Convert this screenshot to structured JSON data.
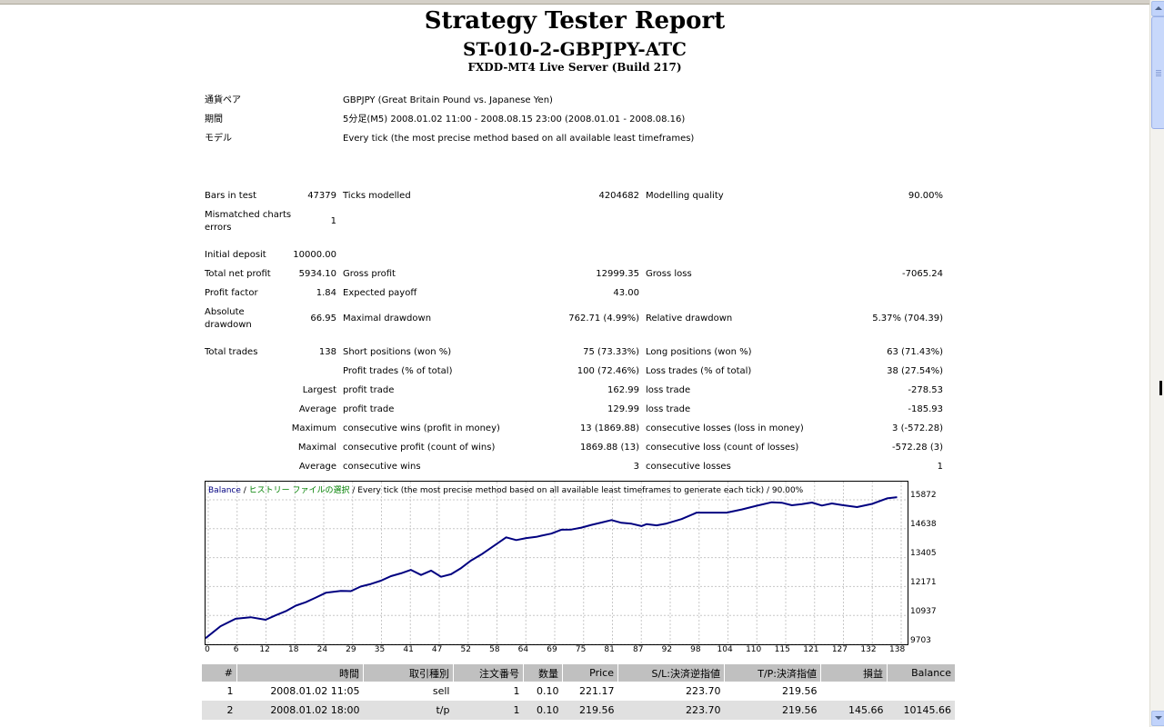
{
  "report": {
    "title": "Strategy Tester Report",
    "subtitle": "ST-010-2-GBPJPY-ATC",
    "server": "FXDD-MT4 Live Server (Build 217)"
  },
  "info": {
    "pair_label": "通貨ペア",
    "pair_value": "GBPJPY (Great Britain Pound vs. Japanese Yen)",
    "period_label": "期間",
    "period_value": "5分足(M5) 2008.01.02 11:00 - 2008.08.15 23:00 (2008.01.01 - 2008.08.16)",
    "model_label": "モデル",
    "model_value": "Every tick (the most precise method based on all available least timeframes)"
  },
  "stats": {
    "bars_label": "Bars in test",
    "bars_value": "47379",
    "ticks_label": "Ticks modelled",
    "ticks_value": "4204682",
    "mq_label": "Modelling quality",
    "mq_value": "90.00%",
    "mismatch_label": "Mismatched charts errors",
    "mismatch_value": "1",
    "deposit_label": "Initial deposit",
    "deposit_value": "10000.00",
    "netprofit_label": "Total net profit",
    "netprofit_value": "5934.10",
    "grossprofit_label": "Gross profit",
    "grossprofit_value": "12999.35",
    "grossloss_label": "Gross loss",
    "grossloss_value": "-7065.24",
    "pf_label": "Profit factor",
    "pf_value": "1.84",
    "ep_label": "Expected payoff",
    "ep_value": "43.00",
    "absdd_label": "Absolute drawdown",
    "absdd_value": "66.95",
    "maxdd_label": "Maximal drawdown",
    "maxdd_value": "762.71 (4.99%)",
    "reldd_label": "Relative drawdown",
    "reldd_value": "5.37% (704.39)",
    "trades_label": "Total trades",
    "trades_value": "138",
    "short_label": "Short positions (won %)",
    "short_value": "75 (73.33%)",
    "long_label": "Long positions (won %)",
    "long_value": "63 (71.43%)",
    "pt_label": "Profit trades (% of total)",
    "pt_value": "100 (72.46%)",
    "lt_label": "Loss trades (% of total)",
    "lt_value": "38 (27.54%)",
    "largest_label": "Largest",
    "lpt_label": "profit trade",
    "lpt_value": "162.99",
    "llt_label": "loss trade",
    "llt_value": "-278.53",
    "average_label": "Average",
    "apt_label": "profit trade",
    "apt_value": "129.99",
    "alt_label": "loss trade",
    "alt_value": "-185.93",
    "maximum_label": "Maximum",
    "mcw_label": "consecutive wins (profit in money)",
    "mcw_value": "13 (1869.88)",
    "mcl_label": "consecutive losses (loss in money)",
    "mcl_value": "3 (-572.28)",
    "maximal_label": "Maximal",
    "mcp_label": "consecutive profit (count of wins)",
    "mcp_value": "1869.88 (13)",
    "mclo_label": "consecutive loss (count of losses)",
    "mclo_value": "-572.28 (3)",
    "average2_label": "Average",
    "acw_label": "consecutive wins",
    "acw_value": "3",
    "acl_label": "consecutive losses",
    "acl_value": "1"
  },
  "chart_caption": {
    "balance": "Balance",
    "sep1": " / ",
    "history": "ヒストリー ファイルの選択",
    "rest": " / Every tick (the most precise method based on all available least timeframes to generate each tick) / 90.00%"
  },
  "chart_data": {
    "type": "line",
    "series": [
      {
        "name": "Balance",
        "color": "#000080",
        "x": [
          0,
          3,
          6,
          9,
          12,
          14,
          16,
          18,
          20,
          22,
          24,
          27,
          29,
          31,
          33,
          35,
          37,
          39,
          41,
          43,
          45,
          47,
          49,
          51,
          53,
          55,
          58,
          60,
          62,
          64,
          66,
          67,
          69,
          71,
          73,
          75,
          77,
          79,
          81,
          83,
          85,
          87,
          88,
          90,
          92,
          95,
          98,
          101,
          104,
          107,
          110,
          113,
          115,
          117,
          119,
          121,
          123,
          125,
          127,
          130,
          133,
          136,
          138
        ],
        "y": [
          9810,
          10330,
          10650,
          10720,
          10610,
          10800,
          10980,
          11220,
          11370,
          11570,
          11780,
          11860,
          11850,
          12050,
          12160,
          12300,
          12500,
          12620,
          12770,
          12550,
          12740,
          12470,
          12580,
          12850,
          13180,
          13430,
          13880,
          14180,
          14060,
          14150,
          14200,
          14250,
          14340,
          14510,
          14520,
          14600,
          14720,
          14820,
          14930,
          14810,
          14770,
          14670,
          14750,
          14700,
          14780,
          14970,
          15250,
          15250,
          15250,
          15390,
          15550,
          15700,
          15680,
          15570,
          15620,
          15690,
          15560,
          15650,
          15580,
          15490,
          15630,
          15870,
          15920
        ]
      }
    ],
    "xticks": [
      "0",
      "6",
      "12",
      "18",
      "24",
      "29",
      "35",
      "41",
      "47",
      "52",
      "58",
      "64",
      "69",
      "75",
      "81",
      "87",
      "92",
      "98",
      "104",
      "110",
      "115",
      "121",
      "127",
      "132",
      "138"
    ],
    "yticks": [
      "15872",
      "14638",
      "13405",
      "12171",
      "10937",
      "9703"
    ],
    "xlim": [
      0,
      139
    ],
    "ylim": [
      9703,
      16200
    ],
    "grid": true
  },
  "trades_table": {
    "headers": [
      "#",
      "時間",
      "取引種別",
      "注文番号",
      "数量",
      "Price",
      "S/L:決済逆指値",
      "T/P:決済指値",
      "損益",
      "Balance"
    ],
    "rows": [
      [
        "1",
        "2008.01.02 11:05",
        "sell",
        "1",
        "0.10",
        "221.17",
        "223.70",
        "219.56",
        "",
        ""
      ],
      [
        "2",
        "2008.01.02 18:00",
        "t/p",
        "1",
        "0.10",
        "219.56",
        "223.70",
        "219.56",
        "145.66",
        "10145.66"
      ]
    ]
  }
}
